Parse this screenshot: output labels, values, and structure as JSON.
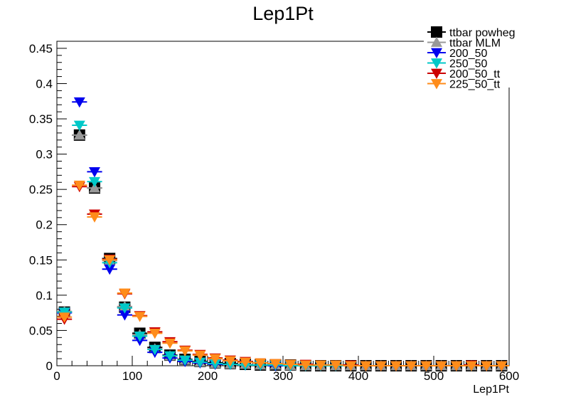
{
  "chart_data": {
    "type": "scatter",
    "title": "Lep1Pt",
    "xlabel": "Lep1Pt",
    "ylabel": "",
    "xlim": [
      0,
      600
    ],
    "ylim": [
      0,
      0.46
    ],
    "x_ticks": [
      "0",
      "100",
      "200",
      "300",
      "400",
      "500",
      "600"
    ],
    "y_ticks": [
      "0",
      "0.05",
      "0.1",
      "0.15",
      "0.2",
      "0.25",
      "0.3",
      "0.35",
      "0.4",
      "0.45"
    ],
    "x_tick_values": [
      0,
      100,
      200,
      300,
      400,
      500,
      600
    ],
    "y_tick_values": [
      0,
      0.05,
      0.1,
      0.15,
      0.2,
      0.25,
      0.3,
      0.35,
      0.4,
      0.45
    ],
    "grid": false,
    "legend_position": "top-right",
    "bin_width": 20,
    "x": [
      10,
      30,
      50,
      70,
      90,
      110,
      130,
      150,
      170,
      190,
      210,
      230,
      250,
      270,
      290,
      310,
      330,
      350,
      370,
      390,
      410,
      430,
      450,
      470,
      490,
      510,
      530,
      550,
      570,
      590
    ],
    "series": [
      {
        "name": "ttbar powheg",
        "color": "#000000",
        "marker": "square",
        "values": [
          0.076,
          0.327,
          0.252,
          0.152,
          0.083,
          0.046,
          0.026,
          0.015,
          0.009,
          0.006,
          0.004,
          0.003,
          0.002,
          0.001,
          0.001,
          0.001,
          0,
          0,
          0,
          0,
          0,
          0,
          0,
          0,
          0,
          0,
          0,
          0,
          0,
          0
        ]
      },
      {
        "name": "ttbar MLM",
        "color": "#999999",
        "marker": "triangle-up",
        "values": [
          0.077,
          0.327,
          0.252,
          0.149,
          0.084,
          0.044,
          0.024,
          0.014,
          0.008,
          0.005,
          0.003,
          0.002,
          0.002,
          0.001,
          0.001,
          0,
          0,
          0,
          0,
          0,
          0,
          0,
          0,
          0,
          0,
          0,
          0,
          0,
          0,
          0
        ]
      },
      {
        "name": "200_50",
        "color": "#0000ee",
        "marker": "triangle-down",
        "values": [
          0.075,
          0.374,
          0.275,
          0.137,
          0.072,
          0.036,
          0.019,
          0.011,
          0.006,
          0.004,
          0.002,
          0.002,
          0.001,
          0.001,
          0,
          0,
          0,
          0,
          0,
          0,
          0,
          0,
          0,
          0,
          0,
          0,
          0,
          0,
          0,
          0
        ]
      },
      {
        "name": "250_50",
        "color": "#00c8c8",
        "marker": "triangle-down",
        "values": [
          0.076,
          0.341,
          0.261,
          0.146,
          0.082,
          0.042,
          0.023,
          0.014,
          0.008,
          0.005,
          0.003,
          0.002,
          0.001,
          0.001,
          0.001,
          0,
          0,
          0,
          0,
          0,
          0,
          0,
          0,
          0,
          0,
          0,
          0,
          0,
          0,
          0
        ]
      },
      {
        "name": "200_50_tt",
        "color": "#cc0000",
        "marker": "triangle-down",
        "values": [
          0.066,
          0.254,
          0.215,
          0.151,
          0.102,
          0.071,
          0.048,
          0.034,
          0.022,
          0.016,
          0.011,
          0.008,
          0.006,
          0.004,
          0.003,
          0.002,
          0.002,
          0.001,
          0.001,
          0.001,
          0,
          0,
          0,
          0,
          0,
          0,
          0,
          0.001,
          0,
          0
        ]
      },
      {
        "name": "225_50_tt",
        "color": "#ff8c1a",
        "marker": "triangle-down",
        "values": [
          0.069,
          0.256,
          0.211,
          0.15,
          0.103,
          0.07,
          0.046,
          0.032,
          0.021,
          0.015,
          0.01,
          0.007,
          0.005,
          0.004,
          0.003,
          0.002,
          0.001,
          0.001,
          0.001,
          0,
          0,
          0,
          0,
          0,
          0,
          0,
          0,
          0,
          0,
          0
        ]
      }
    ]
  }
}
